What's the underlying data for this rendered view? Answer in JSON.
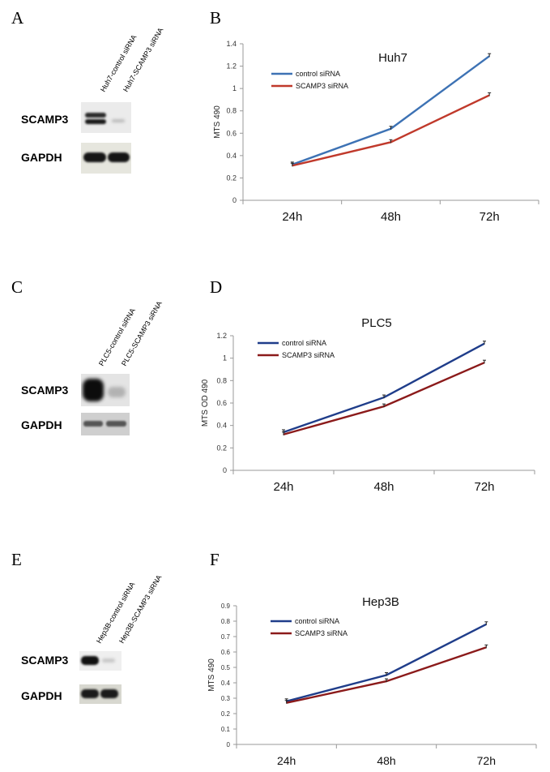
{
  "panels": {
    "a": {
      "letter": "A",
      "lanes": [
        "Huh7-control siRNA",
        "Huh7-SCAMP3 siRNA"
      ],
      "bands": [
        "SCAMP3",
        "GAPDH"
      ]
    },
    "b": {
      "letter": "B"
    },
    "c": {
      "letter": "C",
      "lanes": [
        "PLC5-control siRNA",
        "PLC5-SCAMP3 siRNA"
      ],
      "bands": [
        "SCAMP3",
        "GAPDH"
      ]
    },
    "d": {
      "letter": "D"
    },
    "e": {
      "letter": "E",
      "lanes": [
        "Hep3B-control siRNA",
        "Hep3B-SCAMP3 siRNA"
      ],
      "bands": [
        "SCAMP3",
        "GAPDH"
      ]
    },
    "f": {
      "letter": "F"
    }
  },
  "chart_data": [
    {
      "type": "line",
      "title": "Huh7",
      "ylabel": "MTS 490",
      "xlabel": "",
      "categories": [
        "24h",
        "48h",
        "72h"
      ],
      "ylim": [
        0,
        1.4
      ],
      "yticks": [
        "0",
        "0.2",
        "0.4",
        "0.6",
        "0.8",
        "1",
        "1.2",
        "1.4"
      ],
      "legend_position": "top-left",
      "series": [
        {
          "name": "control siRNA",
          "values": [
            0.32,
            0.64,
            1.29
          ],
          "color": "#3d72b4"
        },
        {
          "name": "SCAMP3 siRNA",
          "values": [
            0.31,
            0.52,
            0.94
          ],
          "color": "#c0392b"
        }
      ]
    },
    {
      "type": "line",
      "title": "PLC5",
      "ylabel": "MTS  OD 490",
      "xlabel": "",
      "categories": [
        "24h",
        "48h",
        "72h"
      ],
      "ylim": [
        0,
        1.2
      ],
      "yticks": [
        "0",
        "0.2",
        "0.4",
        "0.6",
        "0.8",
        "1",
        "1.2"
      ],
      "legend_position": "top-left",
      "series": [
        {
          "name": "control siRNA",
          "values": [
            0.34,
            0.65,
            1.13
          ],
          "color": "#1f3d8a"
        },
        {
          "name": "SCAMP3 siRNA",
          "values": [
            0.32,
            0.57,
            0.96
          ],
          "color": "#8b1a1a"
        }
      ]
    },
    {
      "type": "line",
      "title": "Hep3B",
      "ylabel": "MTS 490",
      "xlabel": "",
      "categories": [
        "24h",
        "48h",
        "72h"
      ],
      "ylim": [
        0,
        0.9
      ],
      "yticks": [
        "0",
        "0.1",
        "0.2",
        "0.3",
        "0.4",
        "0.5",
        "0.6",
        "0.7",
        "0.8",
        "0.9"
      ],
      "legend_position": "top-left",
      "series": [
        {
          "name": "control siRNA",
          "values": [
            0.28,
            0.45,
            0.78
          ],
          "color": "#1f3d8a"
        },
        {
          "name": "SCAMP3 siRNA",
          "values": [
            0.27,
            0.41,
            0.63
          ],
          "color": "#8b1a1a"
        }
      ]
    }
  ]
}
